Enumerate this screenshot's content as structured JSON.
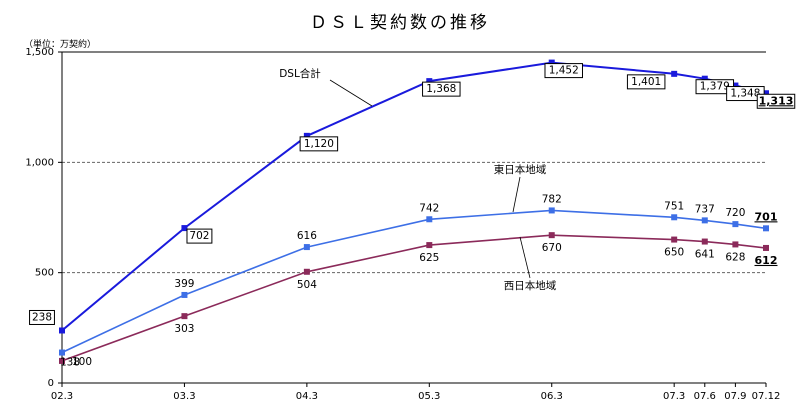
{
  "chart_data": {
    "type": "line",
    "title": "ＤＳＬ契約数の推移",
    "unit_note": "（単位：万契約）",
    "categories": [
      "02.3",
      "03.3",
      "04.3",
      "05.3",
      "06.3",
      "07.3",
      "07.6",
      "07.9",
      "07.12"
    ],
    "x_months": [
      0,
      12,
      24,
      36,
      48,
      60,
      63,
      66,
      69
    ],
    "y_ticks": [
      "0",
      "500",
      "1,000",
      "1,500"
    ],
    "y_tick_values": [
      0,
      500,
      1000,
      1500
    ],
    "ylim": [
      0,
      1500
    ],
    "grid": {
      "dashed_at": [
        500,
        1000
      ]
    },
    "series": [
      {
        "name": "DSL合計",
        "color": "#1a1adc",
        "values": [
          238,
          702,
          1120,
          1368,
          1452,
          1401,
          1379,
          1348,
          1313
        ],
        "labels": [
          "238",
          "702",
          "1,120",
          "1,368",
          "1,452",
          "1,401",
          "1,379",
          "1,348",
          "1,313"
        ],
        "boxed_labels": true
      },
      {
        "name": "東日本地域",
        "color": "#3d6fe6",
        "values": [
          138,
          399,
          616,
          742,
          782,
          751,
          737,
          720,
          701
        ],
        "labels": [
          "138",
          "399",
          "616",
          "742",
          "782",
          "751",
          "737",
          "720",
          "701"
        ],
        "boxed_labels": false
      },
      {
        "name": "西日本地域",
        "color": "#8b2a5a",
        "values": [
          100,
          303,
          504,
          625,
          670,
          650,
          641,
          628,
          612
        ],
        "labels": [
          "100",
          "303",
          "504",
          "625",
          "670",
          "650",
          "641",
          "628",
          "612"
        ],
        "boxed_labels": false
      }
    ]
  }
}
